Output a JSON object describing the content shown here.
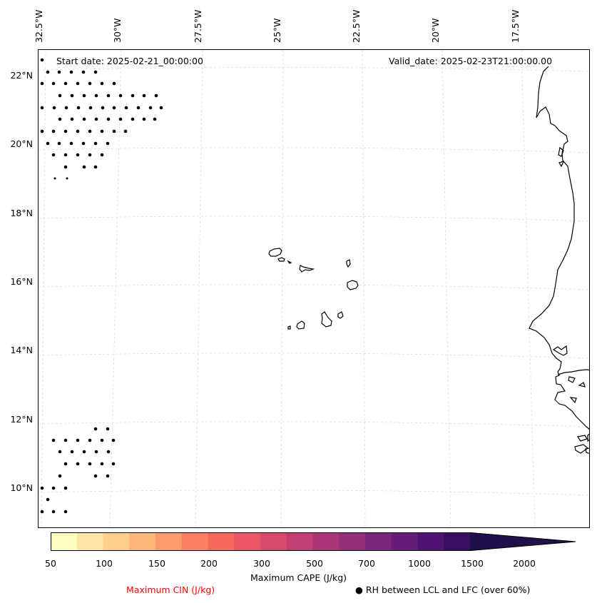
{
  "map": {
    "start_date": "Start date: 2025-02-21_00:00:00",
    "valid_date": "Valid_date: 2025-02-23T21:00:00.00",
    "lon_labels": [
      "32.5°W",
      "30°W",
      "27.5°W",
      "25°W",
      "22.5°W",
      "20°W",
      "17.5°W"
    ],
    "lat_labels": [
      "22°N",
      "20°N",
      "18°N",
      "16°N",
      "14°N",
      "12°N",
      "10°N"
    ],
    "gridlines": "dashed light gray",
    "coastline_color": "#000000",
    "hatch_marker_color": "#000000"
  },
  "colorbar": {
    "colormap": "magma_r",
    "extend": "max",
    "colors": [
      "#fffdbf",
      "#fee7a4",
      "#fecf8b",
      "#feb67a",
      "#fd9c6c",
      "#fb8162",
      "#f66a5c",
      "#ea5661",
      "#d84a6b",
      "#c23f73",
      "#aa3677",
      "#932e7a",
      "#7c2579",
      "#661d79",
      "#4f1374",
      "#380f5f",
      "#1f0f4b"
    ],
    "tick_labels": [
      "50",
      "100",
      "150",
      "200",
      "300",
      "500",
      "700",
      "1000",
      "1500",
      "2000"
    ],
    "title": "Maximum CAPE (J/kg)"
  },
  "legend": {
    "cin_label": "Maximum CIN (J/kg)",
    "cin_color": "#ff0000",
    "rh_label": "RH between LCL and LFC (over 60%)",
    "rh_symbol": "●"
  }
}
